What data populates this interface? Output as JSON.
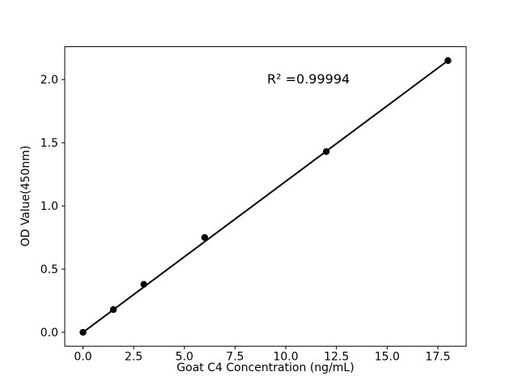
{
  "figure": {
    "background": "#ffffff"
  },
  "chart_data": {
    "type": "scatter",
    "title": "",
    "xlabel": "Goat C4 Concentration (ng/mL)",
    "ylabel": "OD Value(450nm)",
    "annotation": "R² =0.99994",
    "x": [
      0,
      1.5,
      3,
      6,
      12,
      18
    ],
    "y": [
      0.0,
      0.18,
      0.38,
      0.75,
      1.43,
      2.15
    ],
    "fit_line": {
      "x": [
        0,
        18
      ],
      "y": [
        0.0,
        2.15
      ]
    },
    "xlim": [
      -0.9,
      18.9
    ],
    "ylim": [
      -0.11,
      2.26
    ],
    "xticks": [
      0,
      2.5,
      5,
      7.5,
      10,
      12.5,
      15,
      17.5
    ],
    "xtick_labels": [
      "0.0",
      "2.5",
      "5.0",
      "7.5",
      "10.0",
      "12.5",
      "15.0",
      "17.5"
    ],
    "yticks": [
      0,
      0.5,
      1.0,
      1.5,
      2.0
    ],
    "ytick_labels": [
      "0.0",
      "0.5",
      "1.0",
      "1.5",
      "2.0"
    ],
    "marker_color": "#000000",
    "line_color": "#000000",
    "grid": false,
    "legend": null
  }
}
